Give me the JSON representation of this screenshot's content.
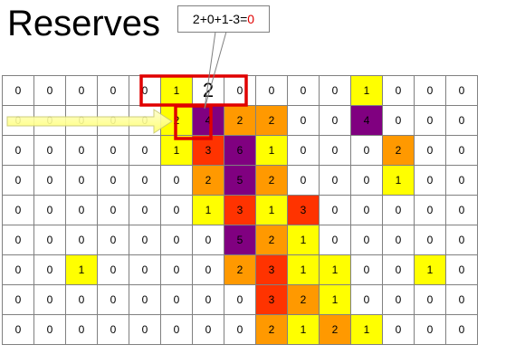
{
  "title": "Reserves",
  "callout": {
    "expr": "2+0+1-3=",
    "result": "0"
  },
  "colors": {
    "white": "#ffffff",
    "yellow": "#ffff00",
    "orange": "#ff9900",
    "red": "#ff3300",
    "purple": "#800080",
    "highlight_border": "#e00000",
    "arrow": "#ffff88"
  },
  "grid": [
    [
      "0",
      "0",
      "0",
      "0",
      "0",
      "1",
      "2",
      "0",
      "0",
      "0",
      "0",
      "1",
      "0",
      "0",
      "0"
    ],
    [
      "0",
      "0",
      "0",
      "0",
      "0",
      "2",
      "4",
      "2",
      "2",
      "0",
      "0",
      "4",
      "0",
      "0",
      "0"
    ],
    [
      "0",
      "0",
      "0",
      "0",
      "0",
      "1",
      "3",
      "6",
      "1",
      "0",
      "0",
      "0",
      "2",
      "0",
      "0"
    ],
    [
      "0",
      "0",
      "0",
      "0",
      "0",
      "0",
      "2",
      "5",
      "2",
      "0",
      "0",
      "0",
      "1",
      "0",
      "0"
    ],
    [
      "0",
      "0",
      "0",
      "0",
      "0",
      "0",
      "1",
      "3",
      "1",
      "3",
      "0",
      "0",
      "0",
      "0",
      "0"
    ],
    [
      "0",
      "0",
      "0",
      "0",
      "0",
      "0",
      "0",
      "5",
      "2",
      "1",
      "0",
      "0",
      "0",
      "0",
      "0"
    ],
    [
      "0",
      "0",
      "1",
      "0",
      "0",
      "0",
      "0",
      "2",
      "3",
      "1",
      "1",
      "0",
      "0",
      "1",
      "0"
    ],
    [
      "0",
      "0",
      "0",
      "0",
      "0",
      "0",
      "0",
      "0",
      "3",
      "2",
      "1",
      "0",
      "0",
      "0",
      "0"
    ],
    [
      "0",
      "0",
      "0",
      "0",
      "0",
      "0",
      "0",
      "0",
      "2",
      "1",
      "2",
      "1",
      "0",
      "0",
      "0"
    ]
  ],
  "cell_colors": [
    [
      "w",
      "w",
      "w",
      "w",
      "w",
      "y",
      "w",
      "w",
      "w",
      "w",
      "w",
      "y",
      "w",
      "w",
      "w"
    ],
    [
      "w",
      "w",
      "w",
      "w",
      "w",
      "y",
      "p",
      "o",
      "o",
      "w",
      "w",
      "p",
      "w",
      "w",
      "w"
    ],
    [
      "w",
      "w",
      "w",
      "w",
      "w",
      "y",
      "r",
      "p",
      "y",
      "w",
      "w",
      "w",
      "o",
      "w",
      "w"
    ],
    [
      "w",
      "w",
      "w",
      "w",
      "w",
      "w",
      "o",
      "p",
      "o",
      "w",
      "w",
      "w",
      "y",
      "w",
      "w"
    ],
    [
      "w",
      "w",
      "w",
      "w",
      "w",
      "w",
      "y",
      "r",
      "y",
      "r",
      "w",
      "w",
      "w",
      "w",
      "w"
    ],
    [
      "w",
      "w",
      "w",
      "w",
      "w",
      "w",
      "w",
      "p",
      "o",
      "y",
      "w",
      "w",
      "w",
      "w",
      "w"
    ],
    [
      "w",
      "w",
      "y",
      "w",
      "w",
      "w",
      "w",
      "o",
      "r",
      "y",
      "y",
      "w",
      "w",
      "y",
      "w"
    ],
    [
      "w",
      "w",
      "w",
      "w",
      "w",
      "w",
      "w",
      "w",
      "r",
      "o",
      "y",
      "w",
      "w",
      "w",
      "w"
    ],
    [
      "w",
      "w",
      "w",
      "w",
      "w",
      "w",
      "w",
      "w",
      "o",
      "y",
      "o",
      "y",
      "w",
      "w",
      "w"
    ]
  ]
}
